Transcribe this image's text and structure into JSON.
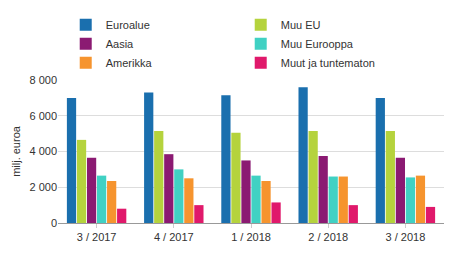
{
  "chart_data": {
    "type": "bar",
    "y_label": "milj. euroa",
    "categories": [
      "3 / 2017",
      "4 / 2017",
      "1 / 2018",
      "2 / 2018",
      "3 / 2018"
    ],
    "series": [
      {
        "name": "Euroalue",
        "color": "#1a6fae",
        "values": [
          7000,
          7300,
          7150,
          7600,
          7000
        ]
      },
      {
        "name": "Muu EU",
        "color": "#b5d33d",
        "values": [
          4650,
          5150,
          5050,
          5150,
          5150
        ]
      },
      {
        "name": "Aasia",
        "color": "#8b1a72",
        "values": [
          3650,
          3850,
          3500,
          3750,
          3650
        ]
      },
      {
        "name": "Muu Eurooppa",
        "color": "#40d1c3",
        "values": [
          2650,
          3000,
          2650,
          2600,
          2550
        ]
      },
      {
        "name": "Amerikka",
        "color": "#f6942e",
        "values": [
          2350,
          2500,
          2350,
          2600,
          2650
        ]
      },
      {
        "name": "Muut ja tuntematon",
        "color": "#e0196b",
        "values": [
          800,
          1000,
          1150,
          1000,
          900
        ]
      }
    ],
    "ylim": [
      0,
      8000
    ],
    "yticks": [
      0,
      {
        "value": 2000,
        "label": "2 000"
      },
      {
        "value": 4000,
        "label": "4 000"
      },
      {
        "value": 6000,
        "label": "6 000"
      },
      {
        "value": 8000,
        "label": "8 000"
      }
    ],
    "grid": true,
    "legend": "top"
  }
}
